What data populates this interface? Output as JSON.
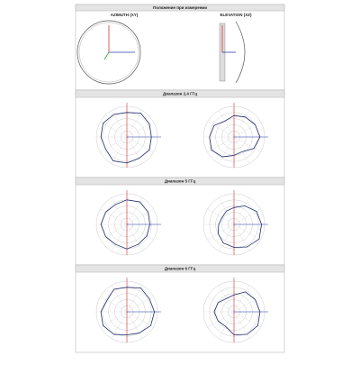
{
  "header": "Положение при измерении",
  "orientation": {
    "columns": [
      "AZIMUTH (XY)",
      "ELEVATION (XZ)"
    ]
  },
  "bands": [
    {
      "title": "Диапазон 2,4 ГГц",
      "charts": [
        {
          "type": "polar",
          "angles": [
            0,
            30,
            60,
            90,
            120,
            150,
            180,
            210,
            240,
            270,
            300,
            330
          ],
          "rlim": [
            0,
            1
          ],
          "color": "#1f2a6b",
          "values": [
            0.8,
            0.85,
            0.9,
            0.8,
            0.85,
            0.9,
            0.85,
            0.8,
            0.9,
            0.85,
            0.8,
            0.85
          ]
        },
        {
          "type": "polar",
          "angles": [
            0,
            30,
            60,
            90,
            120,
            150,
            180,
            210,
            240,
            270,
            300,
            330
          ],
          "rlim": [
            0,
            1
          ],
          "color": "#1f2a6b",
          "values": [
            0.85,
            0.8,
            0.75,
            0.7,
            0.6,
            0.75,
            0.8,
            0.85,
            0.75,
            0.6,
            0.55,
            0.75
          ]
        }
      ]
    },
    {
      "title": "Диапазон 5 ГГц",
      "charts": [
        {
          "type": "polar",
          "angles": [
            0,
            30,
            60,
            90,
            120,
            150,
            180,
            210,
            240,
            270,
            300,
            330
          ],
          "rlim": [
            0,
            1
          ],
          "color": "#1f2a6b",
          "values": [
            0.75,
            0.8,
            0.85,
            0.8,
            0.75,
            0.8,
            0.85,
            0.8,
            0.75,
            0.8,
            0.75,
            0.75
          ]
        },
        {
          "type": "polar",
          "angles": [
            0,
            30,
            60,
            90,
            120,
            150,
            180,
            210,
            240,
            270,
            300,
            330
          ],
          "rlim": [
            0,
            1
          ],
          "color": "#1f2a6b",
          "values": [
            0.9,
            0.85,
            0.7,
            0.55,
            0.5,
            0.45,
            0.5,
            0.6,
            0.7,
            0.75,
            0.85,
            0.95
          ]
        }
      ]
    },
    {
      "title": "Диапазон 6 ГГц",
      "charts": [
        {
          "type": "polar",
          "angles": [
            0,
            30,
            60,
            90,
            120,
            150,
            180,
            210,
            240,
            270,
            300,
            330
          ],
          "rlim": [
            0,
            1
          ],
          "color": "#1f2a6b",
          "values": [
            0.9,
            0.85,
            0.9,
            0.8,
            0.85,
            0.75,
            0.85,
            0.9,
            0.85,
            0.75,
            0.8,
            0.9
          ]
        },
        {
          "type": "polar",
          "angles": [
            0,
            30,
            60,
            90,
            120,
            150,
            180,
            210,
            240,
            270,
            300,
            330
          ],
          "rlim": [
            0,
            1
          ],
          "color": "#1f2a6b",
          "values": [
            0.85,
            0.8,
            0.75,
            0.55,
            0.5,
            0.6,
            0.65,
            0.6,
            0.55,
            0.75,
            0.85,
            0.9
          ]
        }
      ]
    }
  ]
}
